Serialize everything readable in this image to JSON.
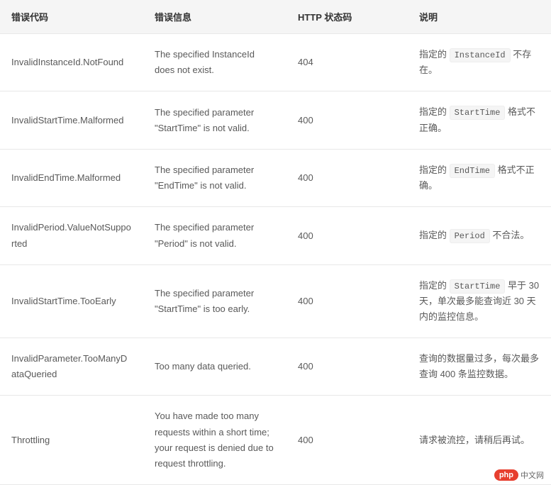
{
  "table": {
    "columns": [
      "错误代码",
      "错误信息",
      "HTTP 状态码",
      "说明"
    ],
    "column_widths": [
      "26%",
      "26%",
      "22%",
      "26%"
    ],
    "header_bg": "#f5f5f5",
    "border_color": "#e8e8e8",
    "text_color": "#595959",
    "header_text_color": "#333",
    "code_bg": "#f5f5f5",
    "rows": [
      {
        "code": "InvalidInstanceId.NotFound",
        "msg": "The specified InstanceId does not exist.",
        "status": "404",
        "desc_pre": "指定的 ",
        "desc_code": "InstanceId",
        "desc_post": " 不存在。"
      },
      {
        "code": "InvalidStartTime.Malformed",
        "msg": "The specified parameter \"StartTime\" is not valid.",
        "status": "400",
        "desc_pre": "指定的 ",
        "desc_code": "StartTime",
        "desc_post": " 格式不正确。"
      },
      {
        "code": "InvalidEndTime.Malformed",
        "msg": "The specified parameter \"EndTime\" is not valid.",
        "status": "400",
        "desc_pre": "指定的 ",
        "desc_code": "EndTime",
        "desc_post": " 格式不正确。"
      },
      {
        "code": "InvalidPeriod.ValueNotSupported",
        "msg": "The specified parameter \"Period\" is not valid.",
        "status": "400",
        "desc_pre": "指定的 ",
        "desc_code": "Period",
        "desc_post": " 不合法。"
      },
      {
        "code": "InvalidStartTime.TooEarly",
        "msg": "The specified parameter \"StartTime\" is too early.",
        "status": "400",
        "desc_pre": "指定的 ",
        "desc_code": "StartTime",
        "desc_post": " 早于 30 天，单次最多能查询近 30 天内的监控信息。"
      },
      {
        "code": "InvalidParameter.TooManyDataQueried",
        "msg": "Too many data queried.",
        "status": "400",
        "desc_pre": "查询的数据量过多，每次最多查询 400 条监控数据。",
        "desc_code": "",
        "desc_post": ""
      },
      {
        "code": "Throttling",
        "msg": "You have made too many requests within a short time; your request is denied due to request throttling.",
        "status": "400",
        "desc_pre": "请求被流控，请稍后再试。",
        "desc_code": "",
        "desc_post": ""
      }
    ]
  },
  "logo": {
    "badge": "php",
    "text": "中文网",
    "badge_bg": "#e73f2f",
    "badge_color": "#ffffff"
  }
}
